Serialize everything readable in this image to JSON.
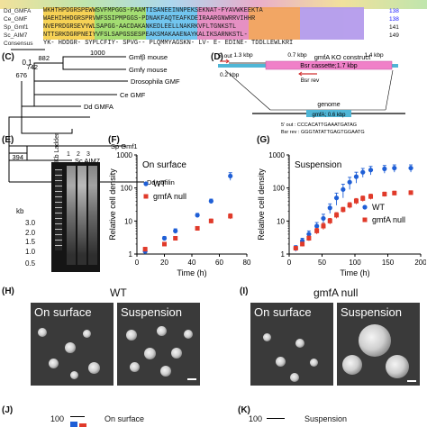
{
  "panels": {
    "B": {
      "rows": [
        {
          "name": "Dd_GMFA",
          "seq": "WKHTHPDGRSPEWWSVFMPGGS-PAAMTISANEEINNPEKSEKNAT-FYAVWKEEKTA",
          "num": "138",
          "color": "#1a1aff"
        },
        {
          "name": "Ce_GMF",
          "seq": "WAEHIHHDGRSPRVWFSSIPMPGGS-PDNAKFAQTEAFKDEIRAARGNWRRVIHHR",
          "num": "138",
          "color": "#1a1aff"
        },
        {
          "name": "Sp_Gmf1",
          "seq": "NVEPRDGRSEVYWLSAPGG-AACDAKANKEDLEELLNAKRKVFLTGNKSTL",
          "num": "141",
          "color": "#111111"
        },
        {
          "name": "Sc_AIM7",
          "seq": "NTTSRKDGRPNEIYVFSLSAPGSSESPEAKSMAKAAENAYKALIKSARNKSTL-",
          "num": "149",
          "color": "#111111"
        },
        {
          "name": "Consensus",
          "seq": "YK- HDDGR- SYPLCFIY- SPVG-- PLQMMYAGSKN- LV- E- EDINE- TDDLLEWLKRI",
          "num": "",
          "color": "#111111"
        }
      ]
    },
    "C": {
      "label": "(C)",
      "scale_value": "0.1",
      "node_values": [
        "1000",
        "882",
        "742",
        "676",
        "394"
      ],
      "taxa": [
        "Gmfβ mouse",
        "Gmfγ mouse",
        "Drosophila GMF",
        "Ce GMF",
        "Dd GMFA",
        "Sp Gmf1",
        "Sc AIM7",
        "Dd cofilin"
      ]
    },
    "D": {
      "label": "(D)",
      "title": "gmfA KO construct",
      "out5": "5' out",
      "len_left": "1.3 kbp",
      "len_mid": "0.7 kbp",
      "len_right": "1.4 kbp",
      "len_small": "0.2 kbp",
      "cassette": "Bsr cassette;1.7 kbp",
      "bsr_rev": "Bsr rev",
      "genome": "genome",
      "gene": "gmfA; 0.6 kbp",
      "primer1": "5' out : CCCACATTGAAATGATAG",
      "primer2": "Bsr rev : GGGTATATTGAGTGGAATG"
    },
    "E": {
      "label": "(E)",
      "ladder_title": "Kb Ladder",
      "lanes": [
        "1",
        "2",
        "3"
      ],
      "kb_label": "kb",
      "sizes": [
        "3.0",
        "2.0",
        "1.5",
        "1.0",
        "0.5"
      ]
    },
    "F": {
      "label": "(F)",
      "chart_data": {
        "type": "scatter",
        "title": "On surface",
        "xlabel": "Time (h)",
        "ylabel": "Relative cell density",
        "xlim": [
          0,
          80
        ],
        "ylim": [
          1,
          1000
        ],
        "y_scale": "log",
        "x_ticks": [
          0,
          20,
          40,
          60,
          80
        ],
        "y_ticks": [
          "1",
          "10",
          "100",
          "1000"
        ],
        "legend_position": "upper-left",
        "series": [
          {
            "name": "WT",
            "color": "#1f5fd6",
            "marker": "circle",
            "x": [
              6,
              20,
              28,
              44,
              54,
              68
            ],
            "y": [
              1.2,
              3.0,
              5.0,
              15,
              40,
              230
            ],
            "err": [
              0.2,
              0.4,
              0.8,
              2,
              6,
              60
            ]
          },
          {
            "name": "gmfA null",
            "color": "#e03a2a",
            "marker": "square",
            "x": [
              6,
              20,
              28,
              44,
              54,
              68
            ],
            "y": [
              1.4,
              2.0,
              3.0,
              6.0,
              10,
              14
            ],
            "err": [
              0.2,
              0.2,
              0.4,
              0.8,
              1.5,
              2.5
            ]
          }
        ]
      }
    },
    "G": {
      "label": "(G)",
      "chart_data": {
        "type": "scatter",
        "title": "Suspension",
        "xlabel": "Time (h)",
        "ylabel": "Relative cell density",
        "xlim": [
          0,
          200
        ],
        "ylim": [
          1,
          1000
        ],
        "y_scale": "log",
        "x_ticks": [
          0,
          50,
          100,
          150,
          200
        ],
        "y_ticks": [
          "1",
          "10",
          "100",
          "1000"
        ],
        "legend_position": "right",
        "series": [
          {
            "name": "WT",
            "color": "#1f5fd6",
            "marker": "circle",
            "x": [
              10,
              20,
              30,
              42,
              52,
              62,
              72,
              82,
              92,
              102,
              112,
              124,
              145,
              160,
              185
            ],
            "y": [
              1.5,
              2.5,
              4,
              7,
              12,
              25,
              50,
              90,
              150,
              220,
              300,
              350,
              380,
              400,
              400
            ],
            "err": [
              0.3,
              0.5,
              1,
              2,
              4,
              8,
              20,
              40,
              60,
              80,
              90,
              100,
              100,
              100,
              100
            ]
          },
          {
            "name": "gmfA null",
            "color": "#e03a2a",
            "marker": "square",
            "x": [
              10,
              20,
              30,
              42,
              52,
              62,
              72,
              82,
              92,
              102,
              112,
              124,
              145,
              160,
              185
            ],
            "y": [
              1.5,
              2.0,
              3,
              5,
              7,
              10,
              15,
              22,
              30,
              40,
              48,
              55,
              65,
              70,
              72
            ],
            "err": [
              0.2,
              0.3,
              0.5,
              1,
              1.5,
              2,
              3,
              4,
              6,
              8,
              9,
              10,
              10,
              10,
              10
            ]
          }
        ]
      }
    },
    "H": {
      "label": "(H)",
      "title": "WT",
      "left": "On surface",
      "right": "Suspension"
    },
    "I": {
      "label": "(I)",
      "title": "gmfA null",
      "left": "On surface",
      "right": "Suspension"
    },
    "J": {
      "label": "(J)",
      "y100": "100",
      "title": "On surface"
    },
    "K": {
      "label": "(K)",
      "y100": "100",
      "title": "Suspension"
    }
  }
}
